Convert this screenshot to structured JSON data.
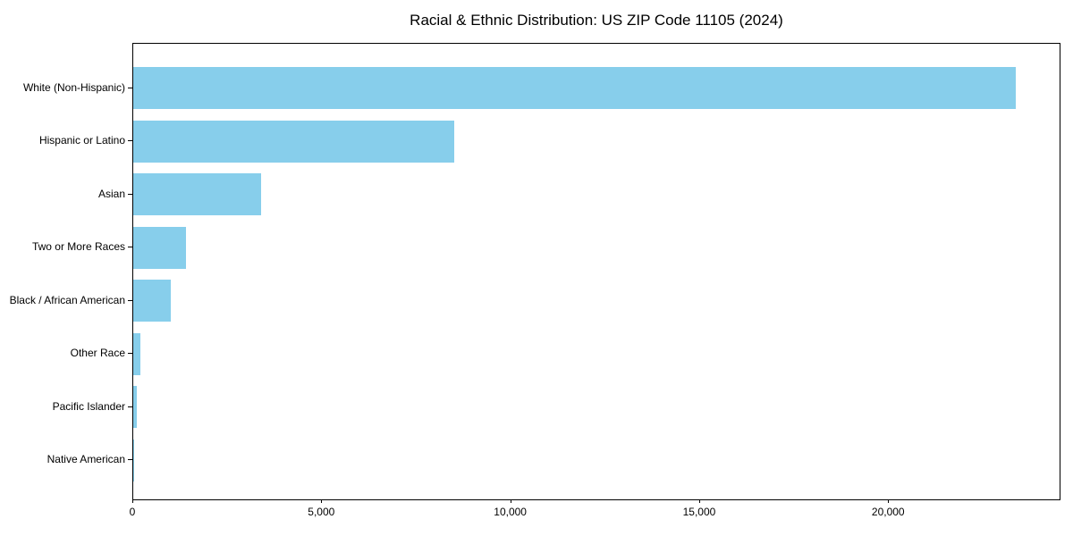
{
  "figure": {
    "background_color": "#ffffff",
    "text_color": "#000000"
  },
  "chart_data": {
    "type": "bar",
    "orientation": "horizontal",
    "title": "Racial & Ethnic Distribution: US ZIP Code 11105 (2024)",
    "categories": [
      "White (Non-Hispanic)",
      "Hispanic or Latino",
      "Asian",
      "Two or More Races",
      "Black / African American",
      "Other Race",
      "Pacific Islander",
      "Native American"
    ],
    "values": [
      23400,
      8500,
      3400,
      1400,
      1000,
      200,
      100,
      20
    ],
    "xlabel": "",
    "ylabel": "",
    "xlim": [
      0,
      24560
    ],
    "xticks": [
      0,
      5000,
      10000,
      15000,
      20000
    ],
    "xtick_labels": [
      "0",
      "5,000",
      "10,000",
      "15,000",
      "20,000"
    ],
    "bar_color": "#87CEEB",
    "grid": false,
    "legend": null,
    "data_labels": false
  }
}
